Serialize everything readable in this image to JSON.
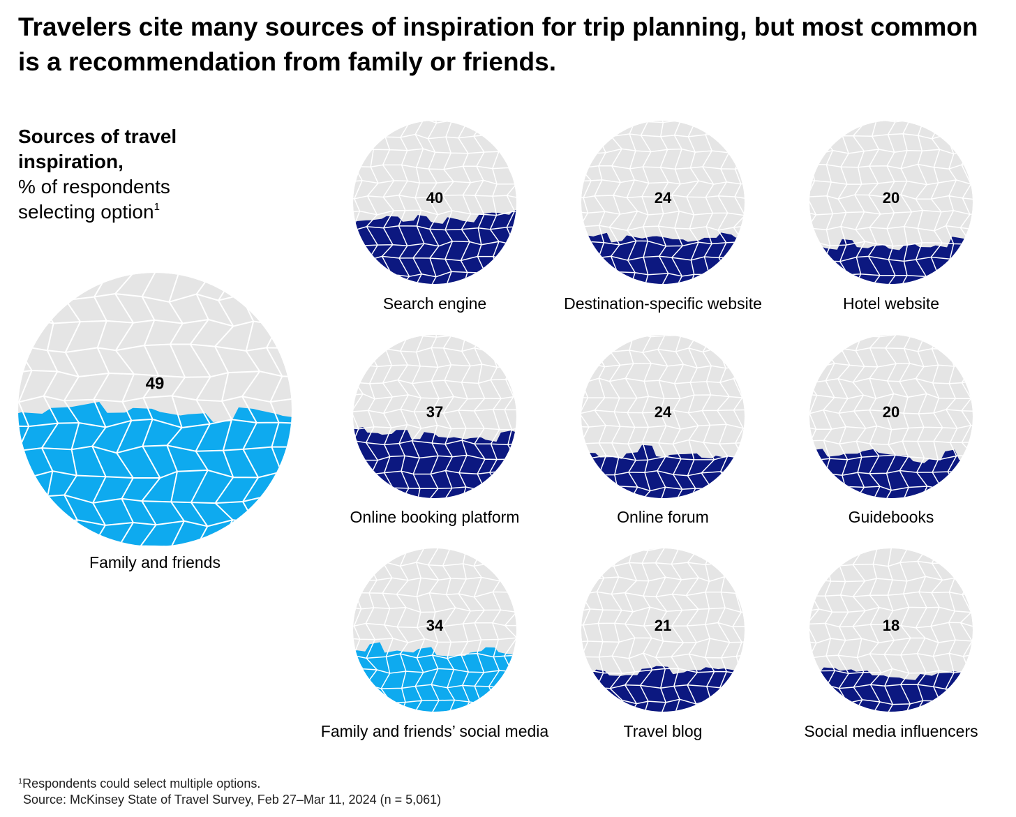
{
  "title": "Travelers cite many sources of inspiration for trip planning, but most common is a recommendation from family or friends.",
  "subtitle": {
    "bold": "Sources of travel inspiration,",
    "text": "% of respondents selecting option",
    "marker": "1"
  },
  "footnote": {
    "marker": "1",
    "note": "Respondents could select multiple options.",
    "source": "Source: McKinsey State of Travel Survey, Feb 27–Mar 11, 2024 (n = 5,061)"
  },
  "colors": {
    "empty": "#e5e5e5",
    "highlight": "#0eaaef",
    "dark": "#0c1880",
    "cell_border": "#ffffff"
  },
  "chart_data": {
    "type": "proportional-area-circles",
    "title": "Sources of travel inspiration",
    "unit": "% of respondents selecting option",
    "categories": [
      "Family and friends",
      "Search engine",
      "Destination-specific website",
      "Hotel website",
      "Online booking platform",
      "Online forum",
      "Guidebooks",
      "Family and friends’ social media",
      "Travel blog",
      "Social media influencers"
    ],
    "values": [
      49,
      40,
      24,
      20,
      37,
      24,
      20,
      34,
      21,
      18
    ],
    "fill": [
      "highlight",
      "dark",
      "dark",
      "dark",
      "dark",
      "dark",
      "dark",
      "highlight",
      "dark",
      "dark"
    ],
    "ylim": [
      0,
      100
    ]
  }
}
